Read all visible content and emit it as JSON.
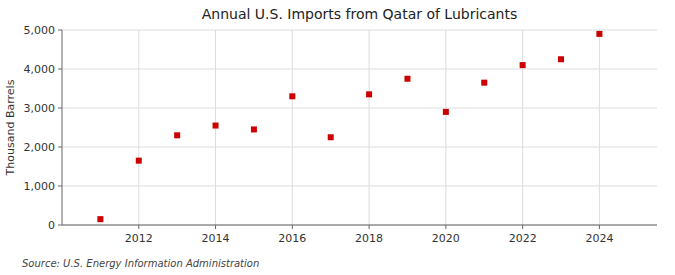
{
  "chart_data": {
    "type": "scatter",
    "title": "Annual U.S. Imports from Qatar of Lubricants",
    "ylabel": "Thousand Barrels",
    "source": "Source: U.S. Energy Information Administration",
    "x": [
      2011,
      2012,
      2013,
      2014,
      2015,
      2016,
      2017,
      2018,
      2019,
      2020,
      2021,
      2022,
      2023,
      2024
    ],
    "values": [
      150,
      1650,
      2300,
      2550,
      2450,
      3300,
      2250,
      3350,
      3750,
      2900,
      3650,
      4100,
      4250,
      4900
    ],
    "color": "#cc0000",
    "marker": "square",
    "grid": true,
    "xlim": [
      2010,
      2025.5
    ],
    "ylim": [
      0,
      5000
    ],
    "xticks": [
      2012,
      2014,
      2016,
      2018,
      2020,
      2022,
      2024
    ],
    "yticks": [
      0,
      {
        "value": 1000,
        "label": "1,000"
      },
      {
        "value": 2000,
        "label": "2,000"
      },
      {
        "value": 3000,
        "label": "3,000"
      },
      {
        "value": 4000,
        "label": "4,000"
      },
      {
        "value": 5000,
        "label": "5,000"
      }
    ]
  }
}
